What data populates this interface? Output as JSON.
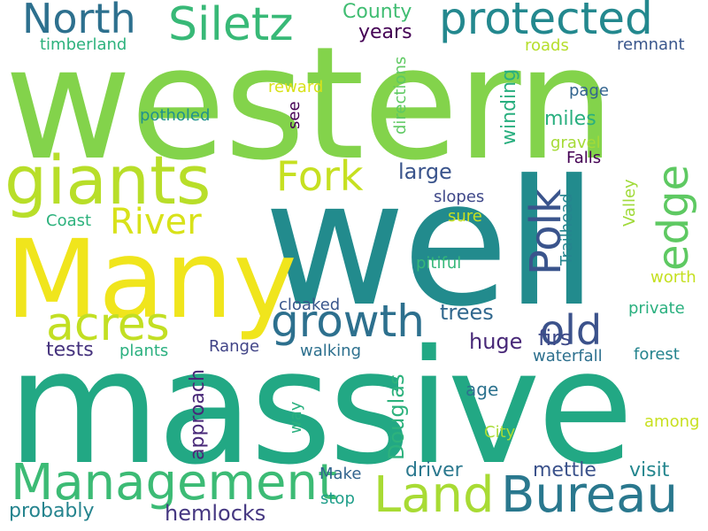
{
  "words": [
    {
      "text": "western",
      "color": "#83d34b"
    },
    {
      "text": "well",
      "color": "#228b8d"
    },
    {
      "text": "massive",
      "color": "#22a884"
    },
    {
      "text": "Many",
      "color": "#f0e51c"
    },
    {
      "text": "giants",
      "color": "#b8de29"
    },
    {
      "text": "protected",
      "color": "#23888e"
    },
    {
      "text": "North",
      "color": "#2d708e"
    },
    {
      "text": "Siletz",
      "color": "#38b977"
    },
    {
      "text": "Fork",
      "color": "#c6e021"
    },
    {
      "text": "River",
      "color": "#d8e219"
    },
    {
      "text": "acres",
      "color": "#c2df23"
    },
    {
      "text": "growth",
      "color": "#2d708e"
    },
    {
      "text": "old",
      "color": "#3b528b"
    },
    {
      "text": "Polk",
      "color": "#3a548c"
    },
    {
      "text": "edge",
      "color": "#5ec962"
    },
    {
      "text": "Management",
      "color": "#3cbb75"
    },
    {
      "text": "Land",
      "color": "#a8db34"
    },
    {
      "text": "Bureau",
      "color": "#2a788e"
    },
    {
      "text": "County",
      "color": "#40bd72"
    },
    {
      "text": "years",
      "color": "#440154"
    },
    {
      "text": "timberland",
      "color": "#2db27d"
    },
    {
      "text": "roads",
      "color": "#b5de2b"
    },
    {
      "text": "remnant",
      "color": "#39568c"
    },
    {
      "text": "directions",
      "color": "#5ec962"
    },
    {
      "text": "winding",
      "color": "#29af7f"
    },
    {
      "text": "page",
      "color": "#32648e"
    },
    {
      "text": "reward",
      "color": "#d8e219"
    },
    {
      "text": "potholed",
      "color": "#20928c"
    },
    {
      "text": "see",
      "color": "#440154"
    },
    {
      "text": "miles",
      "color": "#29af7f"
    },
    {
      "text": "gravel",
      "color": "#a5db36"
    },
    {
      "text": "Falls",
      "color": "#440154"
    },
    {
      "text": "large",
      "color": "#3a548c"
    },
    {
      "text": "Valley",
      "color": "#a0da39"
    },
    {
      "text": "Trailhead",
      "color": "#25848e"
    },
    {
      "text": "slopes",
      "color": "#3f4889"
    },
    {
      "text": "sure",
      "color": "#c8e020"
    },
    {
      "text": "Coast",
      "color": "#2db27d"
    },
    {
      "text": "pitiful",
      "color": "#35b779"
    },
    {
      "text": "worth",
      "color": "#c5e021"
    },
    {
      "text": "cloaked",
      "color": "#39568c"
    },
    {
      "text": "private",
      "color": "#2ab07f"
    },
    {
      "text": "trees",
      "color": "#31688e"
    },
    {
      "text": "huge",
      "color": "#482878"
    },
    {
      "text": "firs",
      "color": "#3e4a89"
    },
    {
      "text": "tests",
      "color": "#46337e"
    },
    {
      "text": "plants",
      "color": "#2ab07f"
    },
    {
      "text": "Range",
      "color": "#414487"
    },
    {
      "text": "walking",
      "color": "#2d708e"
    },
    {
      "text": "approach",
      "color": "#482878"
    },
    {
      "text": "Douglas",
      "color": "#2db27d"
    },
    {
      "text": "waterfall",
      "color": "#2d708e"
    },
    {
      "text": "forest",
      "color": "#25848e"
    },
    {
      "text": "age",
      "color": "#2c728e"
    },
    {
      "text": "among",
      "color": "#c8e020"
    },
    {
      "text": "way",
      "color": "#2ab07f"
    },
    {
      "text": "City",
      "color": "#a8db34"
    },
    {
      "text": "driver",
      "color": "#2a788e"
    },
    {
      "text": "mettle",
      "color": "#3b528b"
    },
    {
      "text": "visit",
      "color": "#24868e"
    },
    {
      "text": "Make",
      "color": "#32648e"
    },
    {
      "text": "stop",
      "color": "#1f9e89"
    },
    {
      "text": "probably",
      "color": "#25848e"
    },
    {
      "text": "hemlocks",
      "color": "#453781"
    }
  ]
}
